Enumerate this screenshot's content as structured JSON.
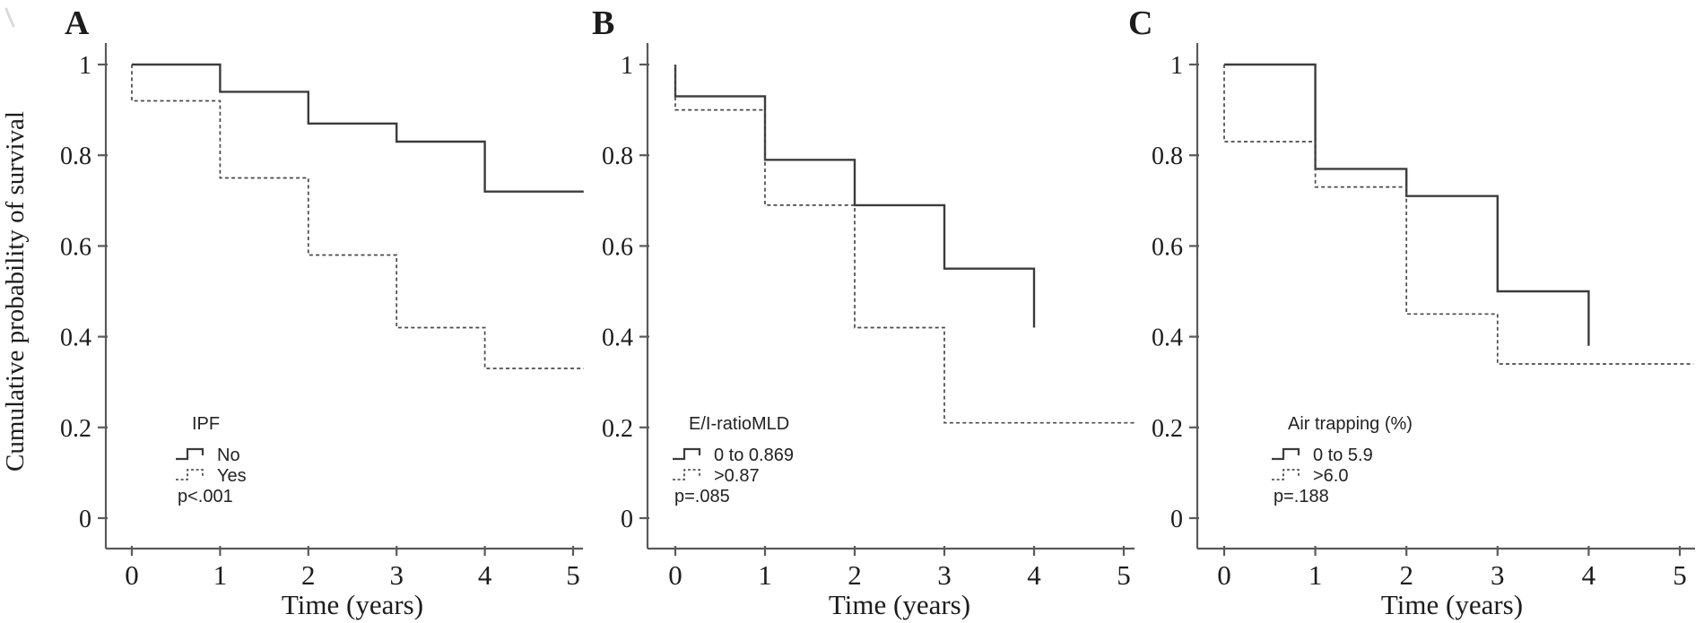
{
  "figure": {
    "ylabel": "Cumulative probability of survival",
    "xlabel": "Time (years)"
  },
  "colors": {
    "axis": "#5a5a5a",
    "curve_solid": "#3c3c3c",
    "curve_dashed": "#4a4a4a",
    "text": "#1c1c1c",
    "background": "#ffffff"
  },
  "chart_data": [
    {
      "type": "line",
      "subtype": "kaplan-meier-step",
      "panel_label": "A",
      "xlabel": "Time (years)",
      "ylabel": "Cumulative probability of survival",
      "xlim": [
        0,
        5
      ],
      "ylim": [
        0,
        1
      ],
      "x_ticks": [
        {
          "v": 0,
          "label": "0"
        },
        {
          "v": 1,
          "label": "1"
        },
        {
          "v": 2,
          "label": "2"
        },
        {
          "v": 3,
          "label": "3"
        },
        {
          "v": 4,
          "label": "4"
        },
        {
          "v": 5,
          "label": "5"
        }
      ],
      "y_ticks": [
        {
          "v": 1,
          "label": "1"
        },
        {
          "v": 0.8,
          "label": "0.8"
        },
        {
          "v": 0.6,
          "label": "0.6"
        },
        {
          "v": 0.4,
          "label": "0.4"
        },
        {
          "v": 0.2,
          "label": "0.2"
        },
        {
          "v": 0,
          "label": "0"
        }
      ],
      "legend": {
        "title": "IPF",
        "entries": [
          {
            "label": "No",
            "style": "solid"
          },
          {
            "label": "Yes",
            "style": "dashed"
          }
        ],
        "p_value": "p<.001"
      },
      "series": [
        {
          "name": "No",
          "style": "solid",
          "points": [
            [
              0,
              1
            ],
            [
              1,
              1
            ],
            [
              1,
              0.94
            ],
            [
              2,
              0.94
            ],
            [
              2,
              0.87
            ],
            [
              3,
              0.87
            ],
            [
              3,
              0.83
            ],
            [
              4,
              0.83
            ],
            [
              4,
              0.72
            ],
            [
              5.12,
              0.72
            ]
          ]
        },
        {
          "name": "Yes",
          "style": "dashed",
          "points": [
            [
              0,
              1
            ],
            [
              0,
              0.92
            ],
            [
              1,
              0.92
            ],
            [
              1,
              0.75
            ],
            [
              2,
              0.75
            ],
            [
              2,
              0.58
            ],
            [
              3,
              0.58
            ],
            [
              3,
              0.42
            ],
            [
              4,
              0.42
            ],
            [
              4,
              0.33
            ],
            [
              5.12,
              0.33
            ]
          ]
        }
      ]
    },
    {
      "type": "line",
      "subtype": "kaplan-meier-step",
      "panel_label": "B",
      "xlabel": "Time (years)",
      "ylabel": "",
      "xlim": [
        0,
        5
      ],
      "ylim": [
        0,
        1
      ],
      "x_ticks": [
        {
          "v": 0,
          "label": "0"
        },
        {
          "v": 1,
          "label": "1"
        },
        {
          "v": 2,
          "label": "2"
        },
        {
          "v": 3,
          "label": "3"
        },
        {
          "v": 4,
          "label": "4"
        },
        {
          "v": 5,
          "label": "5"
        }
      ],
      "y_ticks": [
        {
          "v": 1,
          "label": "1"
        },
        {
          "v": 0.8,
          "label": "0.8"
        },
        {
          "v": 0.6,
          "label": "0.6"
        },
        {
          "v": 0.4,
          "label": "0.4"
        },
        {
          "v": 0.2,
          "label": "0.2"
        },
        {
          "v": 0,
          "label": "0"
        }
      ],
      "legend": {
        "title": "E/I-ratioMLD",
        "entries": [
          {
            "label": "0 to 0.869",
            "style": "solid"
          },
          {
            "label": ">0.87",
            "style": "dashed"
          }
        ],
        "p_value": "p=.085"
      },
      "series": [
        {
          "name": "0 to 0.869",
          "style": "solid",
          "points": [
            [
              0,
              1
            ],
            [
              0,
              0.93
            ],
            [
              1,
              0.93
            ],
            [
              1,
              0.79
            ],
            [
              2,
              0.79
            ],
            [
              2,
              0.69
            ],
            [
              3,
              0.69
            ],
            [
              3,
              0.55
            ],
            [
              4,
              0.55
            ],
            [
              4,
              0.42
            ]
          ]
        },
        {
          "name": ">0.87",
          "style": "dashed",
          "points": [
            [
              0,
              1
            ],
            [
              0,
              0.9
            ],
            [
              1,
              0.9
            ],
            [
              1,
              0.69
            ],
            [
              2,
              0.69
            ],
            [
              2,
              0.42
            ],
            [
              3,
              0.42
            ],
            [
              3,
              0.21
            ],
            [
              5.12,
              0.21
            ]
          ]
        }
      ]
    },
    {
      "type": "line",
      "subtype": "kaplan-meier-step",
      "panel_label": "C",
      "xlabel": "Time (years)",
      "ylabel": "",
      "xlim": [
        0,
        5
      ],
      "ylim": [
        0,
        1
      ],
      "x_ticks": [
        {
          "v": 0,
          "label": "0"
        },
        {
          "v": 1,
          "label": "1"
        },
        {
          "v": 2,
          "label": "2"
        },
        {
          "v": 3,
          "label": "3"
        },
        {
          "v": 4,
          "label": "4"
        },
        {
          "v": 5,
          "label": "5"
        }
      ],
      "y_ticks": [
        {
          "v": 1,
          "label": "1"
        },
        {
          "v": 0.8,
          "label": "0.8"
        },
        {
          "v": 0.6,
          "label": "0.6"
        },
        {
          "v": 0.4,
          "label": "0.4"
        },
        {
          "v": 0.2,
          "label": "0.2"
        },
        {
          "v": 0,
          "label": "0"
        }
      ],
      "legend": {
        "title": "Air trapping (%)",
        "entries": [
          {
            "label": "0 to 5.9",
            "style": "solid"
          },
          {
            "label": ">6.0",
            "style": "dashed"
          }
        ],
        "p_value": "p=.188"
      },
      "series": [
        {
          "name": "0 to 5.9",
          "style": "solid",
          "points": [
            [
              0,
              1
            ],
            [
              1,
              1
            ],
            [
              1,
              0.77
            ],
            [
              2,
              0.77
            ],
            [
              2,
              0.71
            ],
            [
              3,
              0.71
            ],
            [
              3,
              0.5
            ],
            [
              4,
              0.5
            ],
            [
              4,
              0.38
            ]
          ]
        },
        {
          "name": ">6.0",
          "style": "dashed",
          "points": [
            [
              0,
              1
            ],
            [
              0,
              0.83
            ],
            [
              1,
              0.83
            ],
            [
              1,
              0.73
            ],
            [
              2,
              0.73
            ],
            [
              2,
              0.45
            ],
            [
              3,
              0.45
            ],
            [
              3,
              0.34
            ],
            [
              5.15,
              0.34
            ]
          ]
        }
      ]
    }
  ]
}
